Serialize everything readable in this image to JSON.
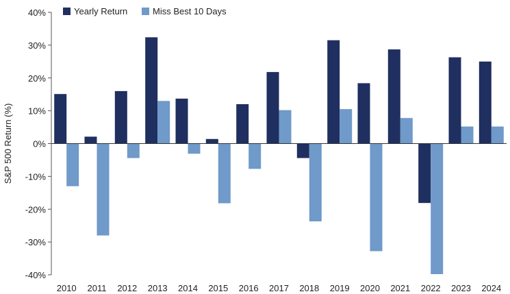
{
  "chart_data": {
    "type": "bar",
    "categories": [
      "2010",
      "2011",
      "2012",
      "2013",
      "2014",
      "2015",
      "2016",
      "2017",
      "2018",
      "2019",
      "2020",
      "2021",
      "2022",
      "2023",
      "2024"
    ],
    "series": [
      {
        "name": "Yearly Return",
        "color": "#1f2f5f",
        "values": [
          15.1,
          2.1,
          16.0,
          32.4,
          13.7,
          1.4,
          12.0,
          21.8,
          -4.4,
          31.5,
          18.4,
          28.7,
          -18.1,
          26.3,
          25.0
        ]
      },
      {
        "name": "Miss Best 10 Days",
        "color": "#6f9ac9",
        "values": [
          -13.0,
          -28.0,
          -4.4,
          13.0,
          -3.1,
          -18.2,
          -7.7,
          10.2,
          -23.7,
          10.5,
          -32.8,
          7.8,
          -39.8,
          5.2,
          5.2
        ]
      }
    ],
    "ylabel": "S&P 500 Return (%)",
    "ylim": [
      -40,
      40
    ],
    "yticks": [
      -40,
      -30,
      -20,
      -10,
      0,
      10,
      20,
      30,
      40
    ],
    "ytick_labels": [
      "-40%",
      "-30%",
      "-20%",
      "-10%",
      "0%",
      "10%",
      "20%",
      "30%",
      "40%"
    ],
    "legend_position": "top-left",
    "grid": false
  }
}
